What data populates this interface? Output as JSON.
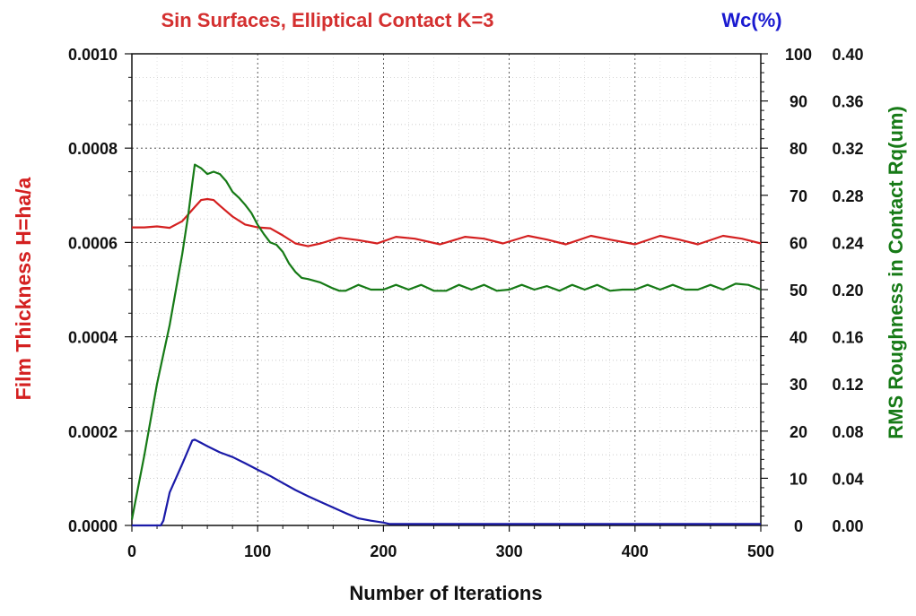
{
  "chart_data": {
    "type": "line",
    "title": "Sin Surfaces, Elliptical Contact K=3",
    "xlabel": "Number of Iterations",
    "ylabel_left": "Film Thickness H=ha/a",
    "ylabel_mid": "Wc(%)",
    "ylabel_right": "RMS Roughness in Contact Rq(um)",
    "xlim": [
      0,
      500
    ],
    "ylim_left": [
      0,
      0.001
    ],
    "ylim_mid": [
      0,
      100
    ],
    "ylim_right": [
      0,
      0.4
    ],
    "grid": true,
    "x_ticks": [
      "0",
      "100",
      "200",
      "300",
      "400",
      "500"
    ],
    "y_left_ticks": [
      "0.0000",
      "0.0002",
      "0.0004",
      "0.0006",
      "0.0008",
      "0.0010"
    ],
    "y_mid_ticks": [
      "0",
      "10",
      "20",
      "30",
      "40",
      "50",
      "60",
      "70",
      "80",
      "90",
      "100"
    ],
    "y_right_ticks": [
      "0.00",
      "0.04",
      "0.08",
      "0.12",
      "0.16",
      "0.20",
      "0.24",
      "0.28",
      "0.32",
      "0.36",
      "0.40"
    ],
    "series": [
      {
        "axis": "left",
        "color": "#d42020",
        "points": [
          [
            0,
            0.000632
          ],
          [
            10,
            0.000632
          ],
          [
            20,
            0.000634
          ],
          [
            30,
            0.000631
          ],
          [
            40,
            0.000645
          ],
          [
            50,
            0.000675
          ],
          [
            55,
            0.00069
          ],
          [
            60,
            0.000692
          ],
          [
            65,
            0.00069
          ],
          [
            70,
            0.000678
          ],
          [
            80,
            0.000655
          ],
          [
            90,
            0.000638
          ],
          [
            100,
            0.000632
          ],
          [
            110,
            0.00063
          ],
          [
            120,
            0.000615
          ],
          [
            130,
            0.000598
          ],
          [
            140,
            0.000592
          ],
          [
            150,
            0.000598
          ],
          [
            165,
            0.00061
          ],
          [
            180,
            0.000605
          ],
          [
            195,
            0.000598
          ],
          [
            210,
            0.000612
          ],
          [
            225,
            0.000608
          ],
          [
            245,
            0.000596
          ],
          [
            265,
            0.000612
          ],
          [
            280,
            0.000608
          ],
          [
            295,
            0.000598
          ],
          [
            315,
            0.000614
          ],
          [
            330,
            0.000606
          ],
          [
            345,
            0.000596
          ],
          [
            365,
            0.000614
          ],
          [
            380,
            0.000606
          ],
          [
            400,
            0.000596
          ],
          [
            420,
            0.000614
          ],
          [
            435,
            0.000606
          ],
          [
            450,
            0.000596
          ],
          [
            470,
            0.000614
          ],
          [
            485,
            0.000608
          ],
          [
            500,
            0.000598
          ]
        ]
      },
      {
        "axis": "mid",
        "color": "#1a1aa8",
        "points": [
          [
            0,
            0
          ],
          [
            23,
            0
          ],
          [
            25,
            1
          ],
          [
            30,
            7
          ],
          [
            40,
            13
          ],
          [
            48,
            18
          ],
          [
            50,
            18.2
          ],
          [
            55,
            17.5
          ],
          [
            60,
            16.8
          ],
          [
            70,
            15.5
          ],
          [
            80,
            14.5
          ],
          [
            90,
            13.2
          ],
          [
            100,
            11.8
          ],
          [
            110,
            10.5
          ],
          [
            120,
            9
          ],
          [
            130,
            7.5
          ],
          [
            140,
            6.2
          ],
          [
            150,
            5
          ],
          [
            160,
            3.8
          ],
          [
            170,
            2.6
          ],
          [
            180,
            1.5
          ],
          [
            190,
            1
          ],
          [
            200,
            0.6
          ],
          [
            205,
            0.3
          ],
          [
            210,
            0.3
          ],
          [
            300,
            0.3
          ],
          [
            400,
            0.3
          ],
          [
            500,
            0.3
          ]
        ]
      },
      {
        "axis": "right",
        "color": "#167a16",
        "points": [
          [
            0,
            0.005
          ],
          [
            10,
            0.06
          ],
          [
            20,
            0.12
          ],
          [
            30,
            0.17
          ],
          [
            40,
            0.23
          ],
          [
            45,
            0.265
          ],
          [
            48,
            0.29
          ],
          [
            50,
            0.306
          ],
          [
            55,
            0.303
          ],
          [
            60,
            0.298
          ],
          [
            65,
            0.3
          ],
          [
            70,
            0.298
          ],
          [
            75,
            0.292
          ],
          [
            80,
            0.283
          ],
          [
            85,
            0.278
          ],
          [
            90,
            0.272
          ],
          [
            95,
            0.265
          ],
          [
            100,
            0.255
          ],
          [
            105,
            0.247
          ],
          [
            110,
            0.24
          ],
          [
            115,
            0.238
          ],
          [
            120,
            0.232
          ],
          [
            125,
            0.222
          ],
          [
            130,
            0.215
          ],
          [
            135,
            0.21
          ],
          [
            140,
            0.209
          ],
          [
            150,
            0.206
          ],
          [
            160,
            0.201
          ],
          [
            165,
            0.199
          ],
          [
            170,
            0.199
          ],
          [
            180,
            0.204
          ],
          [
            190,
            0.2
          ],
          [
            200,
            0.2
          ],
          [
            210,
            0.204
          ],
          [
            220,
            0.2
          ],
          [
            230,
            0.204
          ],
          [
            240,
            0.199
          ],
          [
            250,
            0.199
          ],
          [
            260,
            0.204
          ],
          [
            270,
            0.2
          ],
          [
            280,
            0.204
          ],
          [
            290,
            0.199
          ],
          [
            300,
            0.2
          ],
          [
            310,
            0.204
          ],
          [
            320,
            0.2
          ],
          [
            330,
            0.203
          ],
          [
            340,
            0.199
          ],
          [
            350,
            0.204
          ],
          [
            360,
            0.2
          ],
          [
            370,
            0.204
          ],
          [
            380,
            0.199
          ],
          [
            390,
            0.2
          ],
          [
            400,
            0.2
          ],
          [
            410,
            0.204
          ],
          [
            420,
            0.2
          ],
          [
            430,
            0.204
          ],
          [
            440,
            0.2
          ],
          [
            450,
            0.2
          ],
          [
            460,
            0.204
          ],
          [
            470,
            0.2
          ],
          [
            480,
            0.205
          ],
          [
            490,
            0.204
          ],
          [
            500,
            0.2
          ]
        ]
      }
    ],
    "colors": {
      "title": "#d43030",
      "left_axis_label": "#d42020",
      "mid_axis_label": "#1a1ad0",
      "right_axis_label": "#167a16",
      "text": "#111111",
      "grid": "#888888"
    }
  }
}
